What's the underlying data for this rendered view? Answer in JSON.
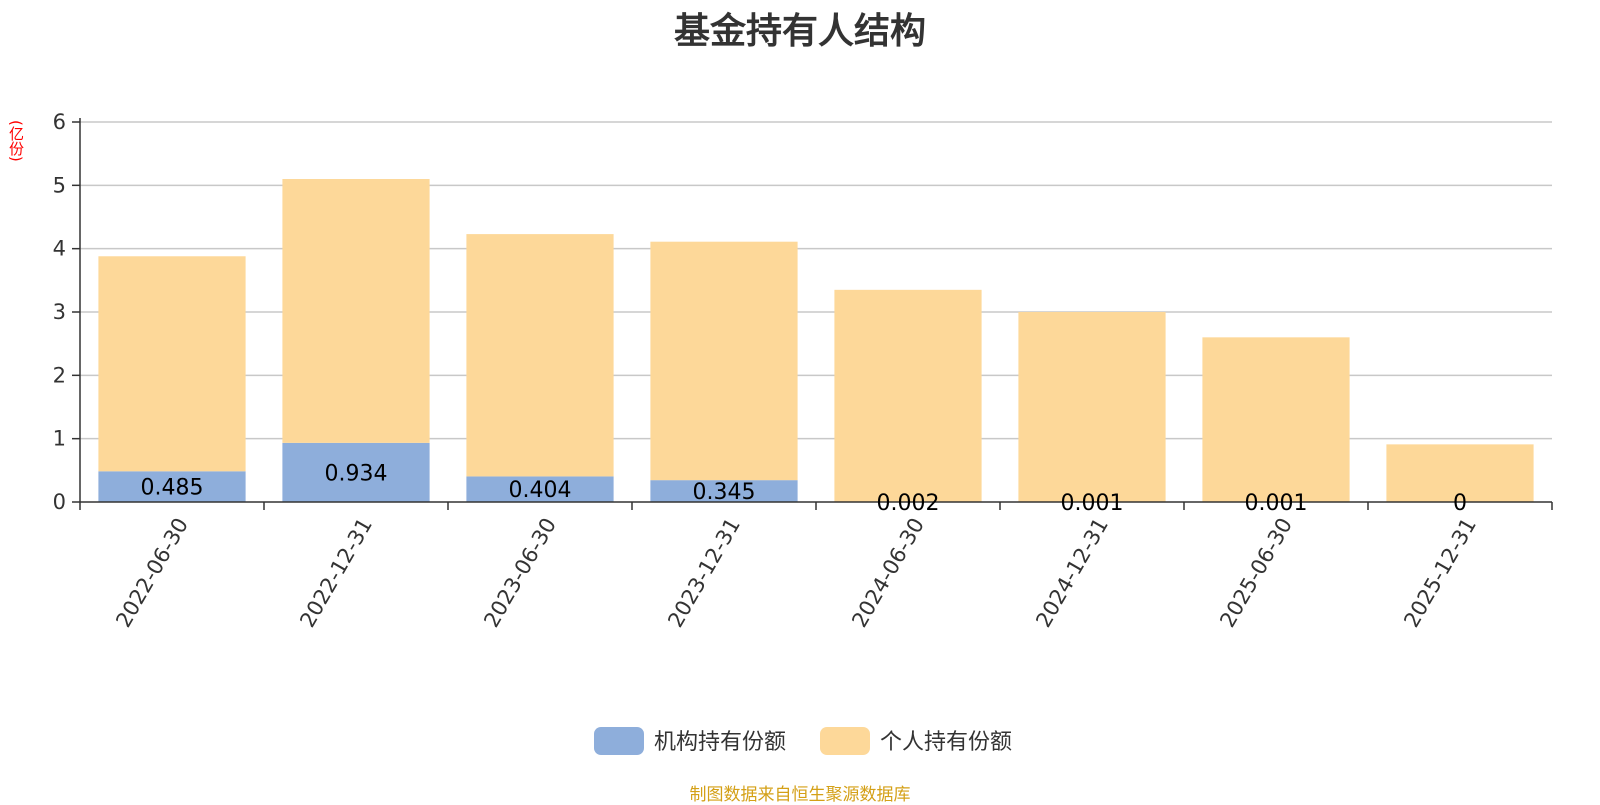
{
  "chart_data": {
    "type": "bar",
    "stacked": true,
    "title": "基金持有人结构",
    "unit": "(亿份)",
    "categories": [
      "2022-06-30",
      "2022-12-31",
      "2023-06-30",
      "2023-12-31",
      "2024-06-30",
      "2024-12-31",
      "2025-06-30",
      "2025-12-31"
    ],
    "series": [
      {
        "name": "机构持有份额",
        "color": "#8eaedb",
        "values": [
          0.485,
          0.934,
          0.404,
          0.345,
          0.002,
          0.001,
          0.001,
          0
        ],
        "labels": [
          "0.485",
          "0.934",
          "0.404",
          "0.345",
          "0.002",
          "0.001",
          "0.001",
          "0"
        ]
      },
      {
        "name": "个人持有份额",
        "color": "#fdd899",
        "values": [
          3.395,
          4.166,
          3.826,
          3.765,
          3.348,
          2.999,
          2.599,
          0.91
        ]
      }
    ],
    "ylim": [
      0,
      6
    ],
    "yticks": [
      0,
      1,
      2,
      3,
      4,
      5,
      6
    ],
    "ytick_labels": [
      "0",
      "1",
      "2",
      "3",
      "4",
      "5",
      "6"
    ],
    "grid": true,
    "legend_position": "bottom-center"
  },
  "source_note": "制图数据来自恒生聚源数据库",
  "colors": {
    "title": "#333333",
    "unit": "#ff0000",
    "source": "#d4a017",
    "grid": "#c8c8c8",
    "axis": "#333333"
  }
}
